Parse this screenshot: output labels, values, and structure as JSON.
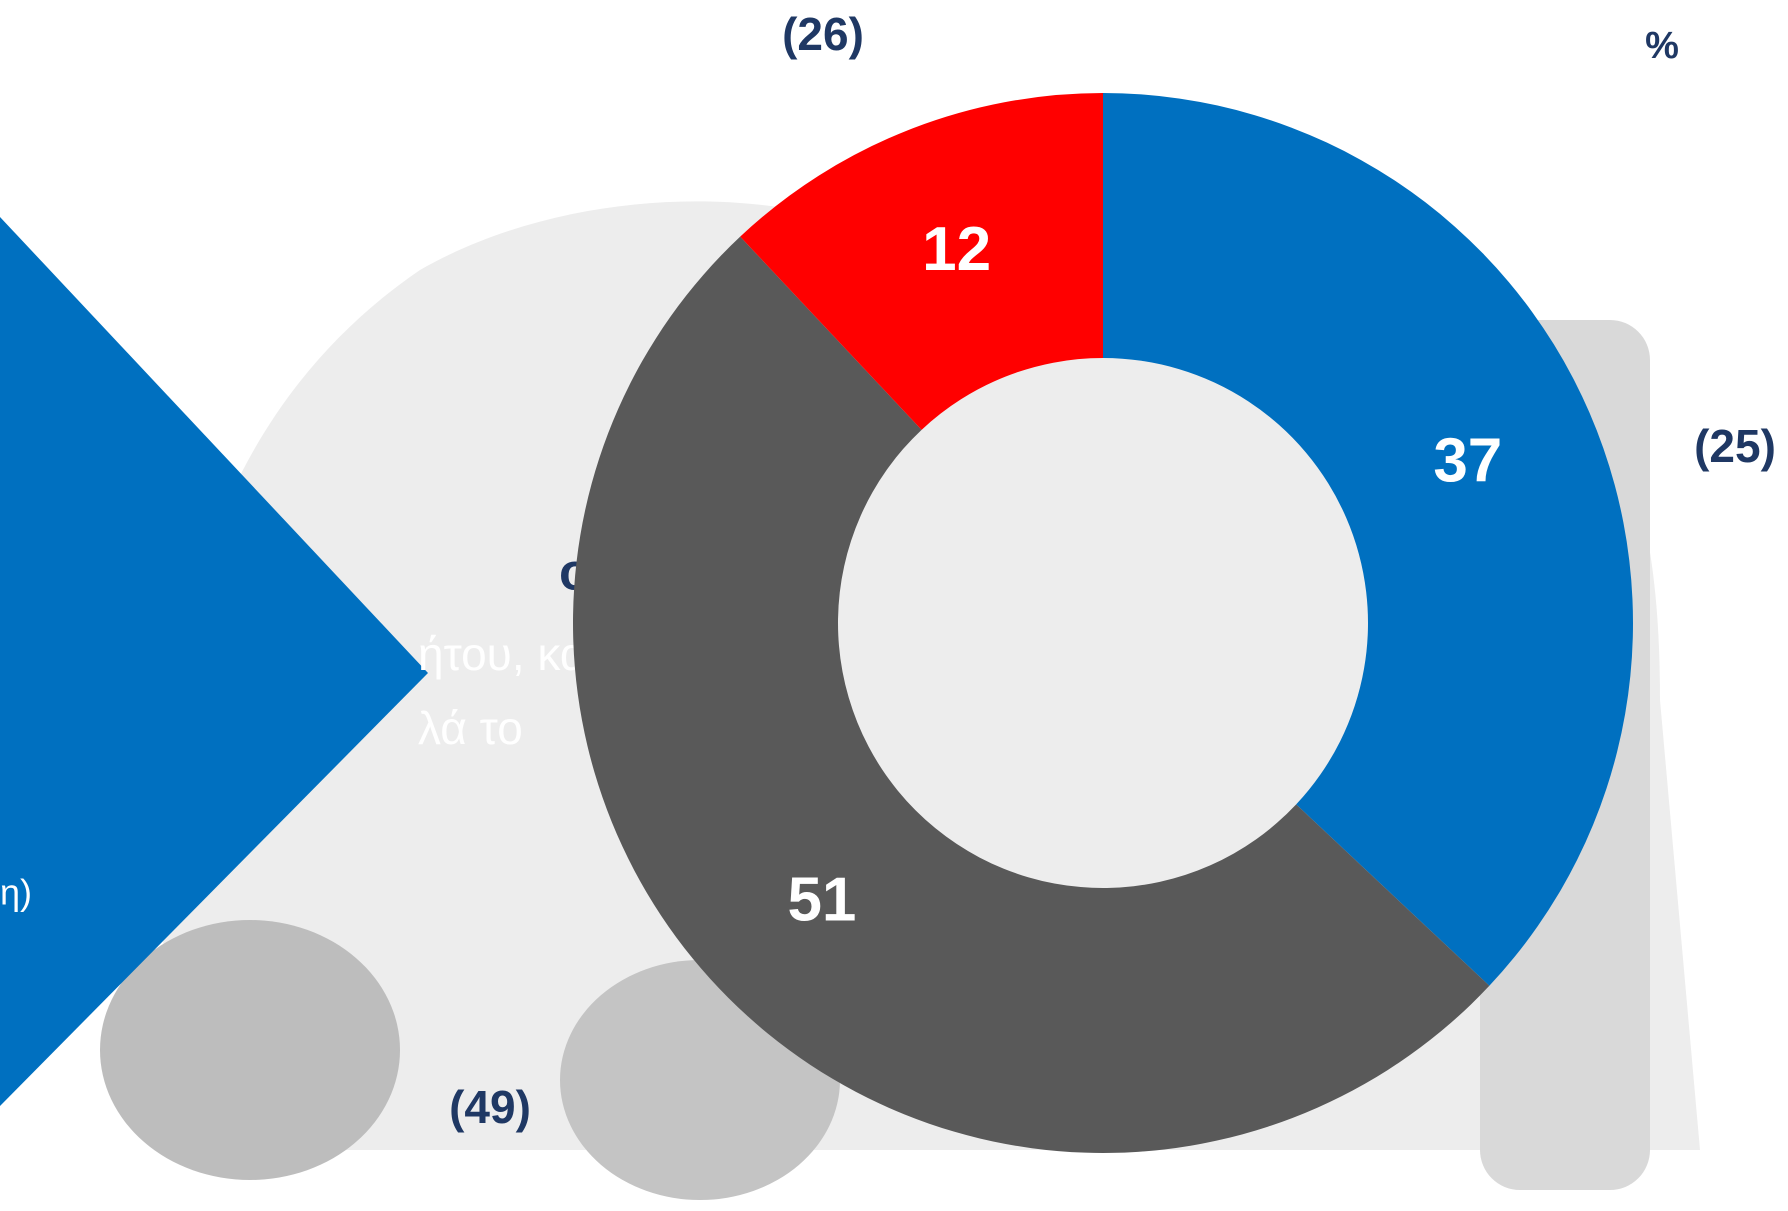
{
  "chart_data": {
    "type": "donut",
    "unit": "%",
    "values": [
      37,
      51,
      12
    ],
    "colors": [
      "#0070c0",
      "#595959",
      "#ff0000"
    ],
    "previous_labels": [
      "(25)",
      "(49)",
      "(26)"
    ]
  },
  "side_text": [
    "οράς",
    "ήτου, και",
    "λά το",
    "η)"
  ]
}
